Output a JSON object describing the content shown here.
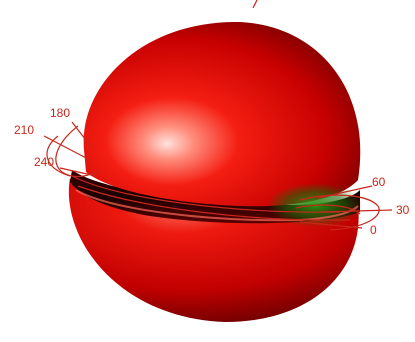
{
  "figure": {
    "description_type": "3d-radiation-pattern",
    "colors": {
      "lobe": "#e8120f",
      "lobe_highlight": "#ffd5d0",
      "lobe_shadow": "#6a0000",
      "null_glow": "#2a8a10",
      "axis": "#c6281c",
      "background": "#ffffff"
    },
    "angle_ticks_left": [
      "180",
      "210",
      "240"
    ],
    "angle_ticks_right": [
      "60",
      "30",
      "0"
    ]
  }
}
